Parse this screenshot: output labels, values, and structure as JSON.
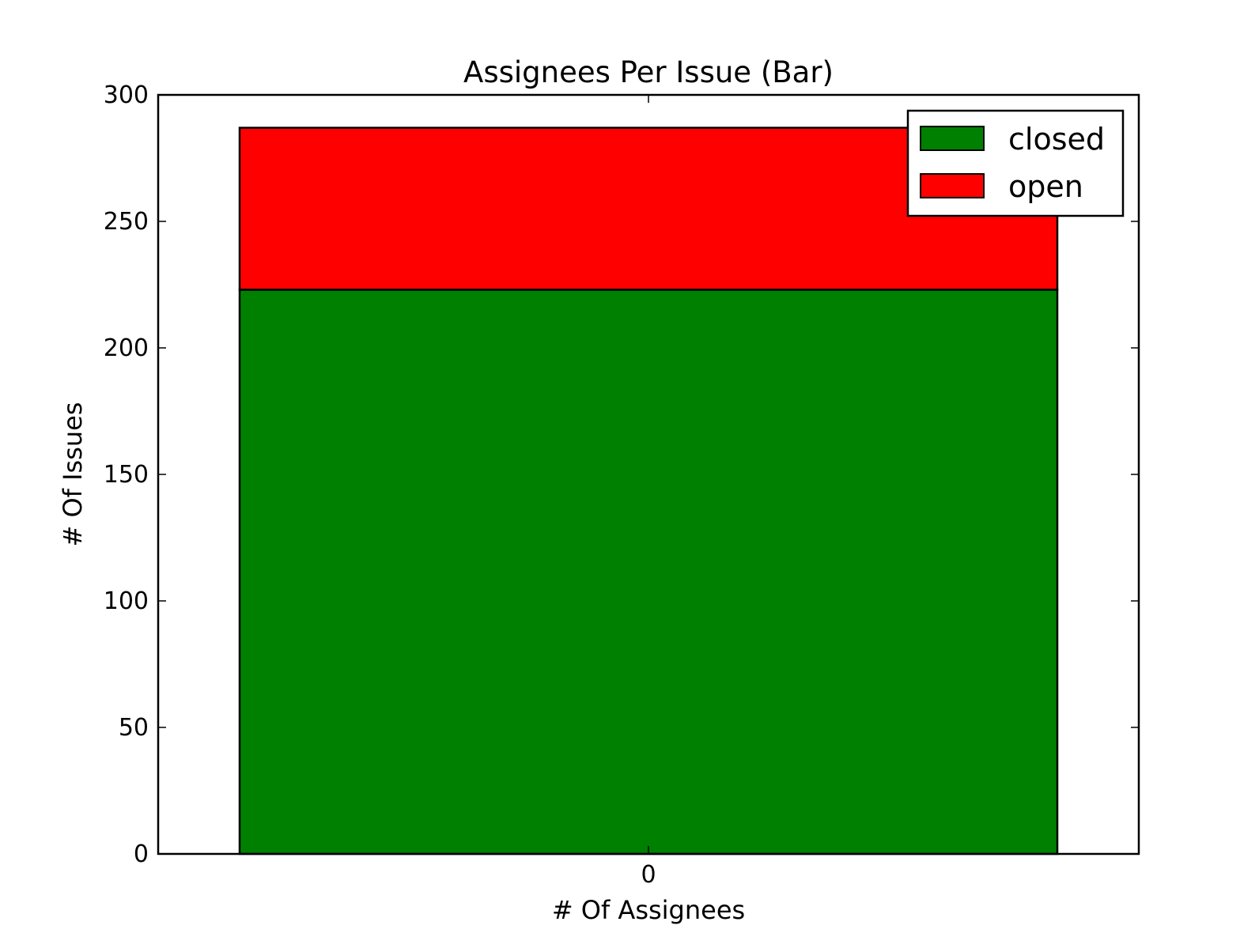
{
  "chart_data": {
    "type": "bar",
    "stacked": true,
    "title": "Assignees Per Issue (Bar)",
    "xlabel": "# Of Assignees",
    "ylabel": "# Of Issues",
    "categories": [
      "0"
    ],
    "series": [
      {
        "name": "closed",
        "values": [
          223
        ],
        "color": "#008000"
      },
      {
        "name": "open",
        "values": [
          64
        ],
        "color": "#ff0000"
      }
    ],
    "ylim": [
      0,
      300
    ],
    "yticks": [
      0,
      50,
      100,
      150,
      200,
      250,
      300
    ],
    "ytick_labels": [
      "0",
      "50",
      "100",
      "150",
      "200",
      "250",
      "300"
    ],
    "xtick_labels": [
      "0"
    ],
    "grid": false,
    "legend_position": "top-right"
  }
}
